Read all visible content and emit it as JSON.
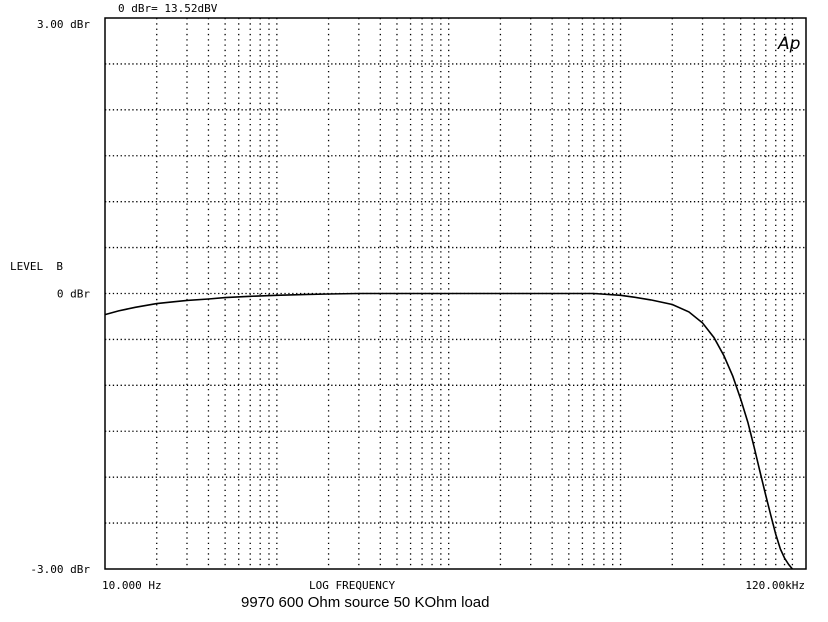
{
  "chart_data": {
    "type": "line",
    "header": "0 dBr= 13.52dBV",
    "logo": "Ap",
    "ylabel": "LEVEL  B",
    "xlabel": "LOG FREQUENCY",
    "caption": "9970 600 Ohm source 50 KOhm load",
    "x_scale": "log",
    "xlim": [
      10,
      120000
    ],
    "ylim": [
      -3,
      3
    ],
    "y_unit": "dBr",
    "y_ticks": [
      {
        "value": 3,
        "label": "3.00 dBr"
      },
      {
        "value": 0,
        "label": "0 dBr"
      },
      {
        "value": -3,
        "label": "-3.00 dBr"
      }
    ],
    "x_tick_labels": [
      {
        "value": 10,
        "label": "10.000 Hz"
      },
      {
        "value": 120000,
        "label": "120.00kHz"
      }
    ],
    "grid": true,
    "series": [
      {
        "x": [
          10,
          12,
          15,
          20,
          25,
          30,
          40,
          50,
          70,
          100,
          150,
          200,
          300,
          500,
          700,
          1000,
          2000,
          3000,
          5000,
          7000,
          10000,
          12000,
          15000,
          20000,
          25000,
          30000,
          35000,
          40000,
          45000,
          50000,
          55000,
          60000,
          65000,
          70000,
          75000,
          80000,
          85000,
          90000,
          95000,
          100000
        ],
        "y": [
          -0.23,
          -0.19,
          -0.15,
          -0.11,
          -0.09,
          -0.075,
          -0.06,
          -0.045,
          -0.03,
          -0.02,
          -0.01,
          -0.005,
          0,
          0,
          0,
          0,
          0,
          0,
          0,
          0,
          -0.02,
          -0.04,
          -0.07,
          -0.12,
          -0.2,
          -0.32,
          -0.48,
          -0.68,
          -0.9,
          -1.15,
          -1.4,
          -1.68,
          -1.95,
          -2.2,
          -2.42,
          -2.62,
          -2.78,
          -2.88,
          -2.95,
          -3.0
        ]
      }
    ]
  }
}
